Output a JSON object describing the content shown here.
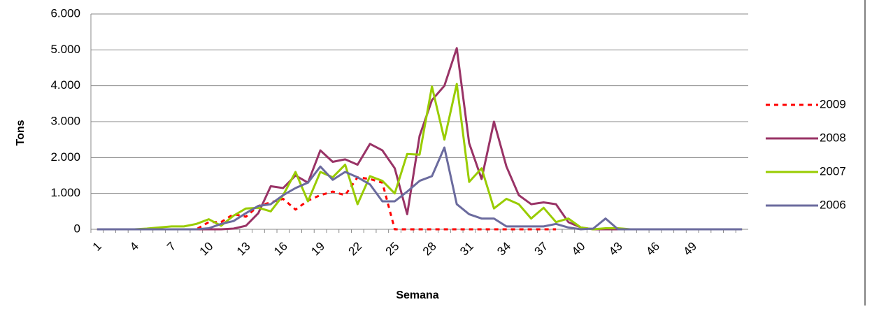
{
  "chart_data": {
    "type": "line",
    "x_label": "Semana",
    "y_label": "Tons",
    "categories": [
      1,
      null,
      null,
      4,
      null,
      null,
      7,
      null,
      null,
      10,
      null,
      null,
      13,
      null,
      null,
      16,
      null,
      null,
      19,
      null,
      null,
      22,
      null,
      null,
      25,
      null,
      null,
      28,
      null,
      null,
      31,
      null,
      null,
      34,
      null,
      null,
      37,
      null,
      null,
      40,
      null,
      null,
      43,
      null,
      null,
      46,
      null,
      null,
      49,
      null,
      null,
      null,
      null
    ],
    "ylim": [
      0,
      6000
    ],
    "yticks": [
      0,
      {
        "value": 1000,
        "label": "1.000"
      },
      {
        "value": 2000,
        "label": "2.000"
      },
      {
        "value": 3000,
        "label": "3.000"
      },
      {
        "value": 4000,
        "label": "4.000"
      },
      {
        "value": 5000,
        "label": "5.000"
      },
      {
        "value": 6000,
        "label": "6.000"
      }
    ],
    "grid": true,
    "legend": "right",
    "series": [
      {
        "name": "2009",
        "color": "#ff0000",
        "dashed": true,
        "values": [
          0,
          0,
          0,
          0,
          0,
          0,
          0,
          0,
          0,
          200,
          200,
          420,
          350,
          650,
          750,
          850,
          550,
          800,
          950,
          1050,
          950,
          1450,
          1400,
          1300,
          0,
          0,
          0,
          0,
          0,
          0,
          0,
          0,
          0,
          0,
          0,
          0,
          0,
          0,
          null,
          null,
          null,
          null,
          null,
          null,
          null,
          null,
          null,
          null,
          null,
          null,
          null,
          null,
          null
        ]
      },
      {
        "name": "2008",
        "color": "#993366",
        "dashed": false,
        "values": [
          0,
          0,
          0,
          0,
          0,
          0,
          0,
          0,
          0,
          0,
          0,
          20,
          100,
          450,
          1200,
          1150,
          1500,
          1300,
          2200,
          1880,
          1950,
          1800,
          2380,
          2200,
          1700,
          420,
          2600,
          3600,
          4000,
          5050,
          2400,
          1400,
          3000,
          1750,
          950,
          700,
          750,
          700,
          200,
          50,
          0,
          0,
          0,
          0,
          0,
          0,
          0,
          0,
          0,
          0,
          0,
          0,
          0
        ]
      },
      {
        "name": "2007",
        "color": "#99cc00",
        "dashed": false,
        "values": [
          0,
          0,
          0,
          0,
          20,
          50,
          80,
          80,
          150,
          280,
          100,
          380,
          580,
          600,
          500,
          950,
          1600,
          780,
          1600,
          1450,
          1800,
          700,
          1480,
          1350,
          1000,
          2100,
          2080,
          3980,
          2500,
          4050,
          1320,
          1700,
          580,
          850,
          700,
          300,
          600,
          200,
          300,
          50,
          0,
          30,
          30,
          0,
          0,
          0,
          0,
          0,
          0,
          0,
          0,
          0,
          0
        ]
      },
      {
        "name": "2006",
        "color": "#6b6b9e",
        "dashed": false,
        "values": [
          0,
          0,
          0,
          0,
          0,
          0,
          0,
          0,
          0,
          30,
          150,
          230,
          450,
          650,
          700,
          950,
          1150,
          1300,
          1750,
          1380,
          1600,
          1450,
          1250,
          780,
          780,
          1050,
          1350,
          1480,
          2280,
          700,
          420,
          300,
          300,
          80,
          80,
          80,
          80,
          150,
          50,
          0,
          20,
          300,
          0,
          0,
          0,
          0,
          0,
          0,
          0,
          0,
          0,
          0,
          0
        ]
      }
    ]
  }
}
